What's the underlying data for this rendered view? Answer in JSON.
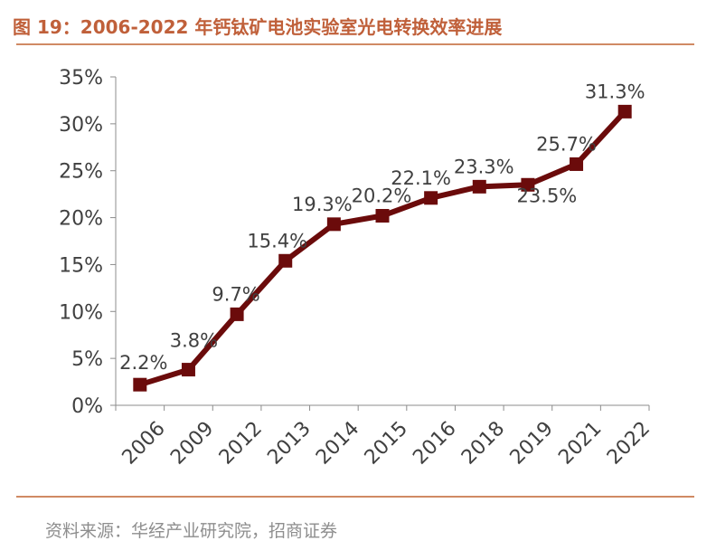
{
  "title": "图 19：2006-2022 年钙钛矿电池实验室光电转换效率进展",
  "source": "资料来源：华经产业研究院，招商证券",
  "colors": {
    "line": "#6b0b0b",
    "title": "#c0603a",
    "rule": "#d08a64",
    "text": "#404040"
  },
  "chart_data": {
    "type": "line",
    "categories": [
      "2006",
      "2009",
      "2012",
      "2013",
      "2014",
      "2015",
      "2016",
      "2018",
      "2019",
      "2021",
      "2022"
    ],
    "series": [
      {
        "values": [
          2.2,
          3.8,
          9.7,
          15.4,
          19.3,
          20.2,
          22.1,
          23.3,
          23.5,
          25.7,
          31.3
        ]
      }
    ],
    "data_labels": [
      "2.2%",
      "3.8%",
      "9.7%",
      "15.4%",
      "19.3%",
      "20.2%",
      "22.1%",
      "23.3%",
      "23.5%",
      "25.7%",
      "31.3%"
    ],
    "yticks": [
      "0%",
      "5%",
      "10%",
      "15%",
      "20%",
      "25%",
      "30%",
      "35%"
    ],
    "ylim": [
      0,
      35
    ],
    "grid": false,
    "legend": "none"
  }
}
